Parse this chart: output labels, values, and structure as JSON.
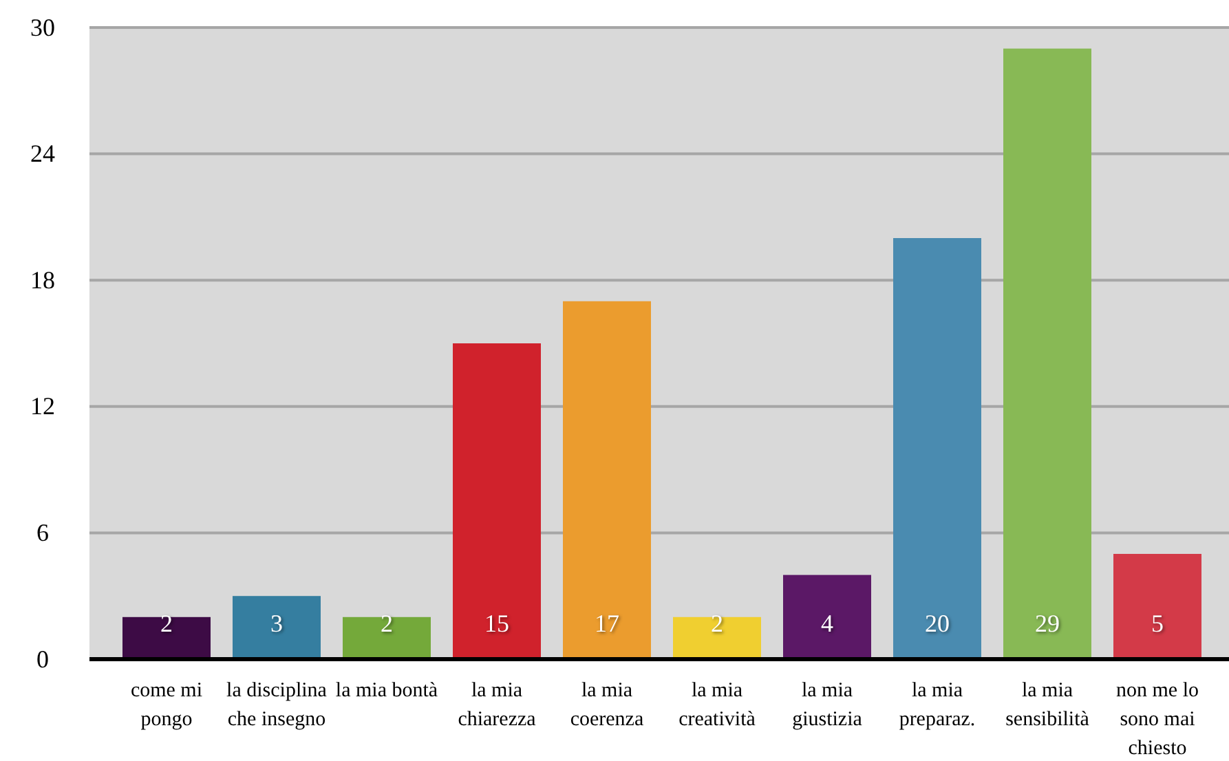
{
  "chart_data": {
    "type": "bar",
    "categories": [
      "come mi pongo",
      "la disciplina che insegno",
      "la mia bontà",
      "la mia chiarezza",
      "la mia coerenza",
      "la mia creatività",
      "la mia giustizia",
      "la mia preparaz.",
      "la mia sensibilità",
      "non me lo sono mai chiesto"
    ],
    "values": [
      2,
      3,
      2,
      15,
      17,
      2,
      4,
      20,
      29,
      5
    ],
    "colors": [
      "#3d0b45",
      "#357ea0",
      "#74a93a",
      "#d0222c",
      "#eb9c2e",
      "#f0cf30",
      "#5b1866",
      "#4a8bb0",
      "#88b955",
      "#d33a48"
    ],
    "ylim": [
      0,
      30
    ],
    "yticks": [
      0,
      6,
      12,
      18,
      24,
      30
    ],
    "grid": "y",
    "data_labels": true
  }
}
